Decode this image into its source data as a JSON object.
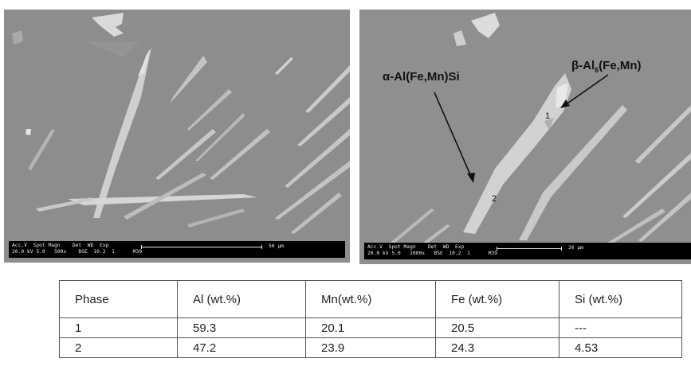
{
  "figures": [
    {
      "scalebar": {
        "header": "Acc.V  Spot Magn    Det  WD  Exp",
        "values": "20.0 kV 5.0   500x    BSE  10.2  1      M39",
        "length_label": "50 µm"
      }
    },
    {
      "scalebar": {
        "header": "Acc.V  Spot Magn    Det  WD  Exp",
        "values": "20.0 kV 5.0   1000x   BSE  10.2  1      M39",
        "length_label": "20 µm"
      },
      "annotations": {
        "alpha_label": "α-Al(Fe,Mn)Si",
        "beta_label_prefix": "β-Al",
        "beta_label_sub": "6",
        "beta_label_suffix": "(Fe,Mn)",
        "point1": "1",
        "point2": "2"
      }
    }
  ],
  "table": {
    "headers": [
      "Phase",
      "Al (wt.%)",
      "Mn(wt.%)",
      "Fe (wt.%)",
      "Si (wt.%)"
    ],
    "rows": [
      [
        "1",
        "59.3",
        "20.1",
        "20.5",
        "---"
      ],
      [
        "2",
        "47.2",
        "23.9",
        "24.3",
        "4.53"
      ]
    ]
  }
}
